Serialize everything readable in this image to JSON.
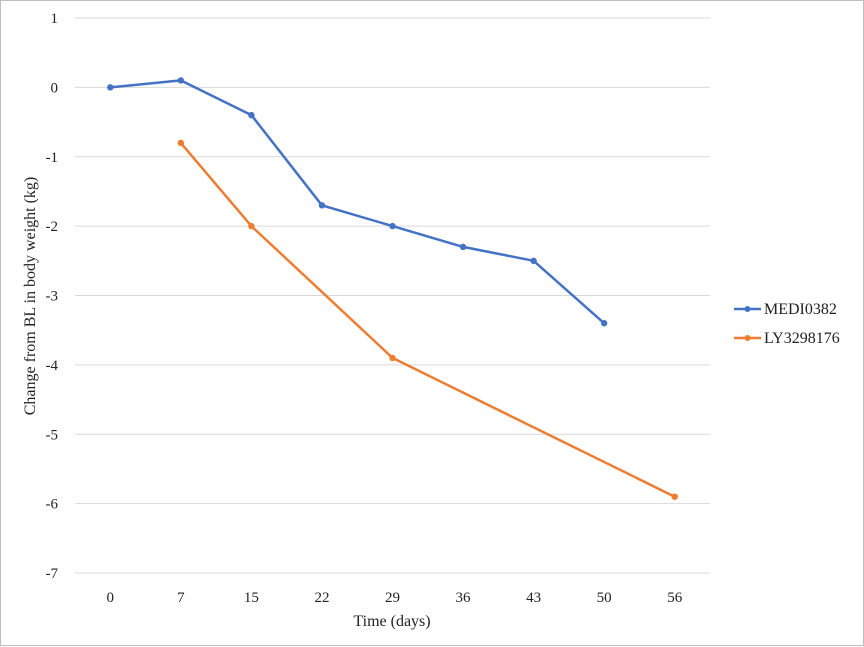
{
  "chart_data": {
    "type": "line",
    "title": "",
    "xlabel": "Time (days)",
    "ylabel": "Change from BL in body weight (kg)",
    "categories": [
      "0",
      "7",
      "15",
      "22",
      "29",
      "36",
      "43",
      "50",
      "56"
    ],
    "ylim": [
      -7,
      1
    ],
    "yticks": [
      "1",
      "0",
      "-1",
      "-2",
      "-3",
      "-4",
      "-5",
      "-6",
      "-7"
    ],
    "grid": true,
    "legend_position": "right",
    "series": [
      {
        "name": "MEDI0382",
        "color": "#4472C4",
        "values": [
          0,
          0.1,
          -0.4,
          -1.7,
          -2.0,
          -2.3,
          -2.5,
          -3.4,
          null
        ]
      },
      {
        "name": "LY3298176",
        "color": "#ED7D31",
        "values": [
          null,
          -0.8,
          -2.0,
          null,
          -3.9,
          null,
          null,
          null,
          -5.9
        ]
      }
    ]
  }
}
